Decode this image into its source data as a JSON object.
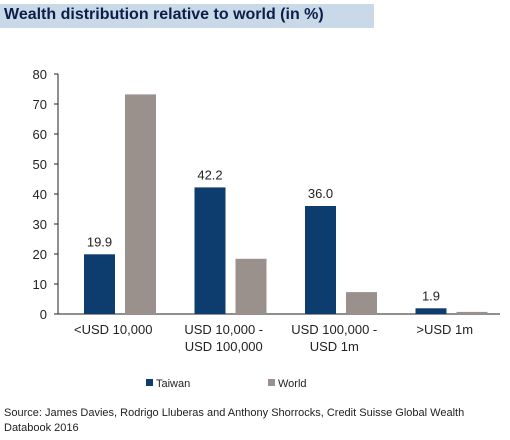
{
  "chart_data": {
    "type": "bar",
    "title": "Wealth distribution relative to world (in %)",
    "categories": [
      [
        "<USD 10,000"
      ],
      [
        "USD 10,000 -",
        "USD 100,000"
      ],
      [
        "USD 100,000 -",
        "USD 1m"
      ],
      [
        ">USD 1m"
      ]
    ],
    "series": [
      {
        "name": "Taiwan",
        "values": [
          19.9,
          42.2,
          36.0,
          1.9
        ],
        "color": "#0d3c6e"
      },
      {
        "name": "World",
        "values": [
          73.2,
          18.4,
          7.3,
          0.7
        ],
        "color": "#9a918c"
      }
    ],
    "data_labels": [
      "19.9",
      "42.2",
      "36.0",
      "1.9"
    ],
    "ylim": [
      0,
      80
    ],
    "yticks": [
      "0",
      "10",
      "20",
      "30",
      "40",
      "50",
      "60",
      "70",
      "80"
    ],
    "grid": false,
    "legend_position": "bottom"
  },
  "source": "Source: James Davies, Rodrigo Lluberas and Anthony Shorrocks, Credit Suisse Global Wealth Databook 2016"
}
